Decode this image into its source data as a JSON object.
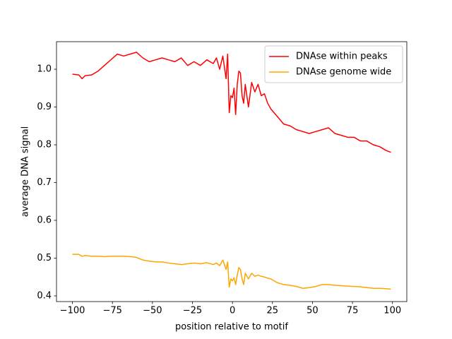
{
  "chart_data": {
    "type": "line",
    "xlabel": "position relative to motif",
    "ylabel": "average DNA signal",
    "x": [
      -100,
      -96,
      -94,
      -92,
      -88,
      -84,
      -80,
      -76,
      -72,
      -68,
      -64,
      -60,
      -56,
      -52,
      -48,
      -44,
      -40,
      -36,
      -32,
      -28,
      -24,
      -20,
      -16,
      -12,
      -10,
      -8,
      -6,
      -4,
      -3,
      -2,
      -1,
      0,
      1,
      2,
      3,
      4,
      5,
      6,
      7,
      8,
      10,
      12,
      14,
      16,
      18,
      20,
      22,
      24,
      28,
      32,
      36,
      40,
      44,
      48,
      52,
      56,
      60,
      64,
      68,
      72,
      76,
      80,
      84,
      88,
      92,
      96,
      99
    ],
    "series": [
      {
        "name": "DNAse within peaks",
        "color": "#ff0000",
        "values": [
          0.987,
          0.985,
          0.975,
          0.983,
          0.985,
          0.995,
          1.01,
          1.025,
          1.04,
          1.035,
          1.04,
          1.045,
          1.03,
          1.02,
          1.025,
          1.03,
          1.025,
          1.02,
          1.03,
          1.01,
          1.02,
          1.01,
          1.025,
          1.015,
          1.03,
          1.0,
          1.035,
          0.975,
          1.04,
          0.885,
          0.93,
          0.925,
          0.95,
          0.88,
          0.96,
          0.995,
          0.99,
          0.93,
          0.91,
          0.96,
          0.9,
          0.965,
          0.94,
          0.96,
          0.93,
          0.935,
          0.91,
          0.895,
          0.875,
          0.855,
          0.85,
          0.84,
          0.835,
          0.83,
          0.835,
          0.84,
          0.845,
          0.83,
          0.825,
          0.82,
          0.82,
          0.81,
          0.81,
          0.8,
          0.795,
          0.785,
          0.78
        ]
      },
      {
        "name": "DNAse genome wide",
        "color": "#ffa500",
        "values": [
          0.51,
          0.51,
          0.505,
          0.507,
          0.505,
          0.505,
          0.504,
          0.505,
          0.505,
          0.505,
          0.504,
          0.502,
          0.495,
          0.492,
          0.49,
          0.49,
          0.487,
          0.485,
          0.483,
          0.485,
          0.487,
          0.485,
          0.488,
          0.483,
          0.487,
          0.48,
          0.495,
          0.47,
          0.49,
          0.423,
          0.445,
          0.44,
          0.448,
          0.43,
          0.455,
          0.475,
          0.47,
          0.445,
          0.43,
          0.46,
          0.445,
          0.46,
          0.452,
          0.455,
          0.452,
          0.45,
          0.447,
          0.445,
          0.435,
          0.43,
          0.428,
          0.425,
          0.42,
          0.422,
          0.425,
          0.43,
          0.43,
          0.428,
          0.427,
          0.426,
          0.425,
          0.424,
          0.422,
          0.42,
          0.42,
          0.419,
          0.418
        ]
      }
    ],
    "xlim": [
      -109.95,
      108.95
    ],
    "ylim": [
      0.385,
      1.073
    ],
    "xticks": [
      {
        "value": -100,
        "label": "−100"
      },
      {
        "value": -75,
        "label": "−75"
      },
      {
        "value": -50,
        "label": "−50"
      },
      {
        "value": -25,
        "label": "−25"
      },
      0,
      25,
      50,
      75,
      100
    ],
    "yticks": [
      0.4,
      0.5,
      0.6,
      0.7,
      0.8,
      0.9,
      {
        "value": 1,
        "label": "1.0"
      }
    ],
    "grid": false,
    "legend": "upper right"
  }
}
